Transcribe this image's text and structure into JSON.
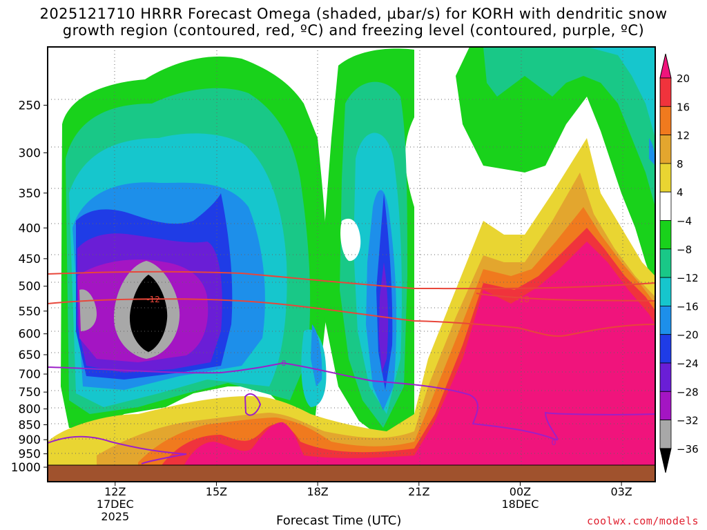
{
  "title_line1": "2025121710 HRRR Forecast Omega (shaded, µbar/s) for KORH with dendritic snow",
  "title_line2": "growth region (contoured, red, ºC) and freezing level (contoured, purple, ºC)",
  "x_axis_title": "Forecast Time (UTC)",
  "credit": "coolwx.com/models",
  "chart_data": {
    "type": "heatmap",
    "y_ticks": [
      250,
      300,
      350,
      400,
      450,
      500,
      550,
      600,
      650,
      700,
      750,
      800,
      850,
      900,
      950,
      1000
    ],
    "y_range": [
      200,
      1000
    ],
    "y_scale": "log-pressure (inverted)",
    "x_ticks": [
      {
        "hour": 12,
        "label": "12Z",
        "sub1": "17DEC",
        "sub2": "2025"
      },
      {
        "hour": 15,
        "label": "15Z",
        "sub1": "",
        "sub2": ""
      },
      {
        "hour": 18,
        "label": "18Z",
        "sub1": "",
        "sub2": ""
      },
      {
        "hour": 21,
        "label": "21Z",
        "sub1": "",
        "sub2": ""
      },
      {
        "hour": 24,
        "label": "00Z",
        "sub1": "18DEC",
        "sub2": ""
      },
      {
        "hour": 27,
        "label": "03Z",
        "sub1": "",
        "sub2": ""
      }
    ],
    "x_range": [
      10,
      28
    ],
    "colorbar": {
      "labels": [
        "20",
        "16",
        "12",
        "8",
        "4",
        "−4",
        "−8",
        "−12",
        "−16",
        "−20",
        "−24",
        "−28",
        "−32",
        "−36"
      ],
      "colors": [
        "#f0147c",
        "#f0333c",
        "#f07a1e",
        "#e3a62e",
        "#e9d532",
        "#ffffff",
        "#19d21b",
        "#19c887",
        "#16c6cd",
        "#1d8fea",
        "#1f3ce6",
        "#6a1ed6",
        "#a415c3",
        "#a8a8a8",
        "#000000"
      ]
    },
    "contours": {
      "dgz_red": {
        "labels": [
          "-12",
          "-18"
        ]
      },
      "freezing_purple": {
        "labels": [
          "0",
          "0"
        ]
      }
    },
    "grid": true
  }
}
